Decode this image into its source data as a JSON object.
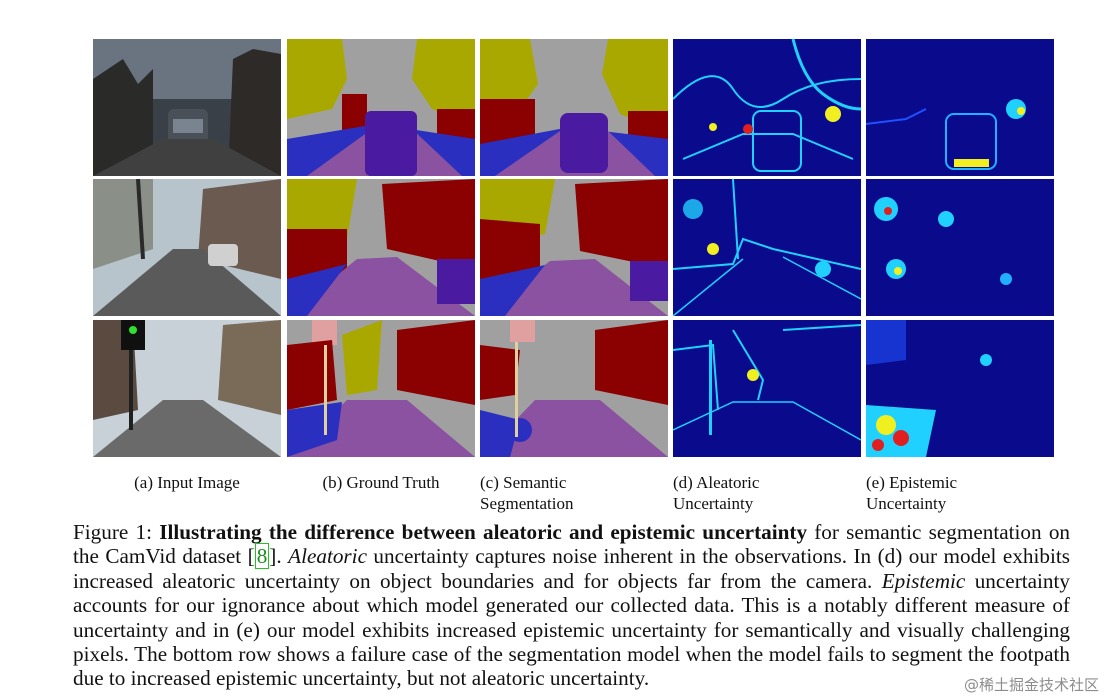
{
  "figure": {
    "column_labels": [
      "(a) Input Image",
      "(b) Ground Truth",
      "(c) Semantic Segmentation",
      "(d) Aleatoric Uncertainty",
      "(e) Epistemic Uncertainty"
    ],
    "colors": {
      "sky_gray": "#a0a0a0",
      "tree_olive": "#a8a800",
      "building_red": "#8b0000",
      "road_purple": "#8a52a0",
      "pavement_blue": "#2a2fc0",
      "car_indigo": "#4a1aa0",
      "heatmap_bg": "#0a0a8c",
      "heatmap_cyan": "#20d0ff",
      "heatmap_yellow": "#f0f020",
      "heatmap_red": "#e02020"
    }
  },
  "caption": {
    "prefix": "Figure 1: ",
    "title": "Illustrating the difference between aleatoric and epistemic uncertainty",
    "after_title": " for semantic segmentation on the CamVid dataset [",
    "citation": "8",
    "after_citation": "]. ",
    "aleatoric_word": "Aleatoric",
    "sentence_2": " uncertainty captures noise inherent in the observations. In (d) our model exhibits increased aleatoric uncertainty on object boundaries and for objects far from the camera. ",
    "epistemic_word": "Epistemic",
    "sentence_3": " uncertainty accounts for our ignorance about which model generated our collected data. This is a notably different measure of uncertainty and in (e) our model exhibits increased epistemic uncertainty for semantically and visually challenging pixels. The bottom row shows a failure case of the segmentation model when the model fails to segment the footpath due to increased epistemic uncertainty, but not aleatoric uncertainty."
  },
  "watermark": "@稀土掘金技术社区"
}
